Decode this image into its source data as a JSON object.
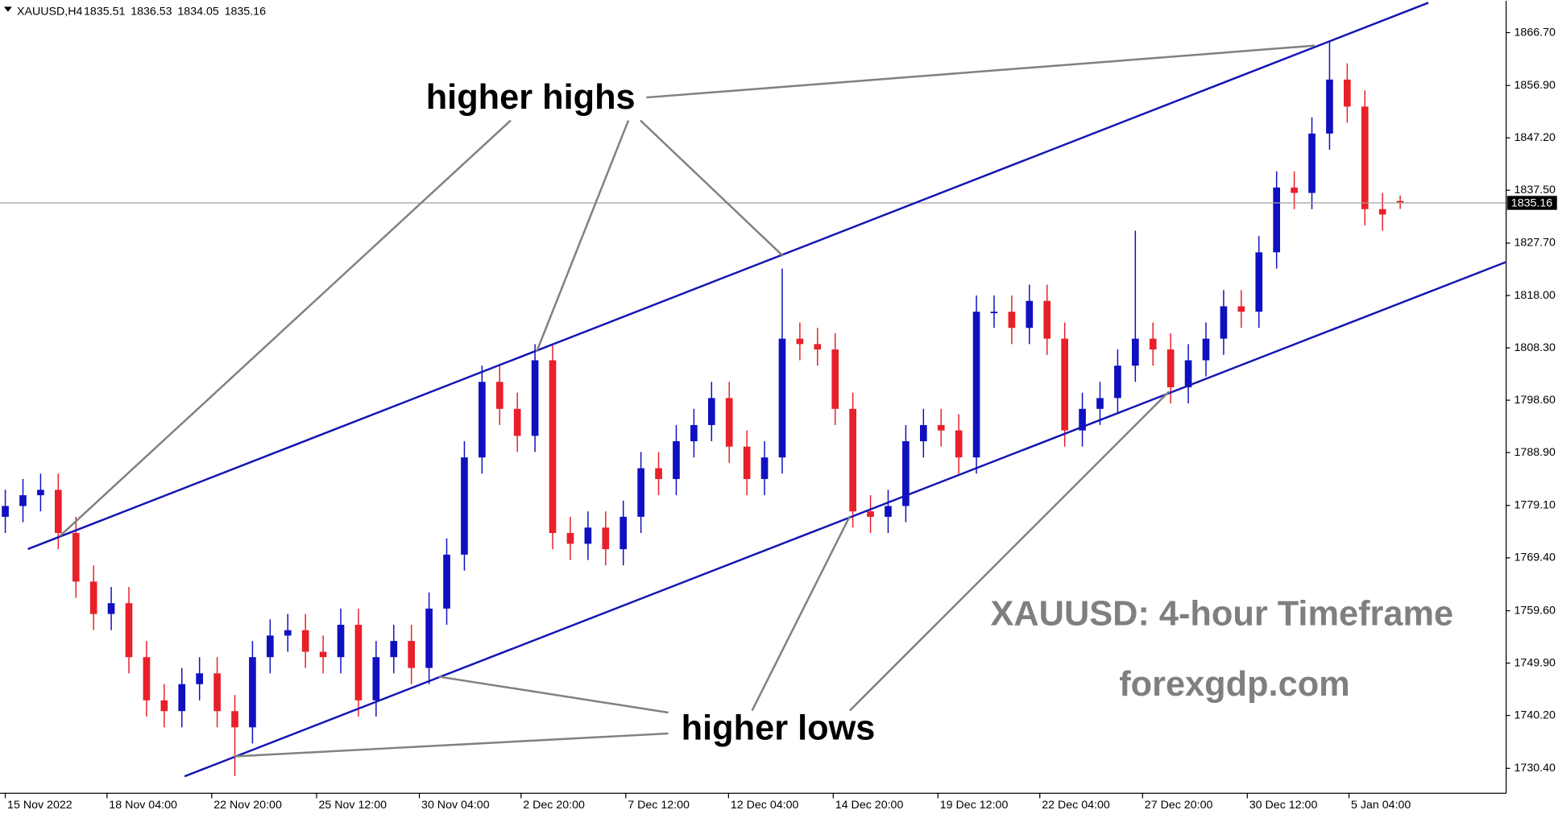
{
  "chart_data": {
    "type": "candlestick",
    "title": "XAUUSD,H4",
    "up_color": "#1010c0",
    "down_color": "#e8202a",
    "open": [
      1777,
      1779,
      1781,
      1782,
      1774,
      1765,
      1759,
      1761,
      1751,
      1743,
      1741,
      1746,
      1748,
      1741,
      1738,
      1751,
      1755,
      1756,
      1752,
      1751,
      1757,
      1743,
      1751,
      1754,
      1749,
      1760,
      1770,
      1788,
      1802,
      1797,
      1792,
      1806,
      1774,
      1772,
      1775,
      1771,
      1777,
      1786,
      1784,
      1791,
      1794,
      1799,
      1790,
      1784,
      1788,
      1810,
      1809,
      1808,
      1797,
      1778,
      1777,
      1779,
      1791,
      1794,
      1793,
      1788,
      1815,
      1815,
      1812,
      1817,
      1810,
      1793,
      1797,
      1799,
      1805,
      1810,
      1808,
      1801,
      1806,
      1810,
      1816,
      1815,
      1826,
      1838,
      1837,
      1848,
      1858,
      1853,
      1834,
      1835.51
    ],
    "high": [
      1782,
      1784,
      1785,
      1785,
      1777,
      1768,
      1764,
      1764,
      1754,
      1746,
      1749,
      1751,
      1751,
      1744,
      1754,
      1758,
      1759,
      1759,
      1755,
      1760,
      1760,
      1754,
      1757,
      1757,
      1763,
      1773,
      1791,
      1805,
      1805,
      1800,
      1809,
      1809,
      1777,
      1778,
      1778,
      1780,
      1789,
      1789,
      1794,
      1797,
      1802,
      1802,
      1793,
      1791,
      1823,
      1813,
      1812,
      1811,
      1800,
      1781,
      1782,
      1794,
      1797,
      1797,
      1796,
      1818,
      1818,
      1818,
      1820,
      1820,
      1813,
      1800,
      1802,
      1808,
      1830,
      1813,
      1811,
      1809,
      1813,
      1819,
      1819,
      1829,
      1841,
      1841,
      1851,
      1865,
      1861,
      1856,
      1837,
      1836.53
    ],
    "low": [
      1774,
      1776,
      1778,
      1771,
      1762,
      1756,
      1756,
      1748,
      1740,
      1738,
      1738,
      1743,
      1738,
      1729,
      1735,
      1748,
      1752,
      1749,
      1748,
      1748,
      1740,
      1740,
      1748,
      1746,
      1746,
      1757,
      1767,
      1785,
      1794,
      1789,
      1789,
      1771,
      1769,
      1769,
      1768,
      1768,
      1774,
      1781,
      1781,
      1788,
      1791,
      1787,
      1781,
      1781,
      1785,
      1806,
      1805,
      1794,
      1775,
      1774,
      1774,
      1776,
      1788,
      1790,
      1785,
      1785,
      1812,
      1809,
      1809,
      1807,
      1790,
      1790,
      1794,
      1796,
      1802,
      1805,
      1798,
      1798,
      1803,
      1807,
      1812,
      1812,
      1823,
      1834,
      1834,
      1845,
      1850,
      1831,
      1830,
      1834.05
    ],
    "close": [
      1779,
      1781,
      1782,
      1774,
      1765,
      1759,
      1761,
      1751,
      1743,
      1741,
      1746,
      1748,
      1741,
      1738,
      1751,
      1755,
      1756,
      1752,
      1751,
      1757,
      1743,
      1751,
      1754,
      1749,
      1760,
      1770,
      1788,
      1802,
      1797,
      1792,
      1806,
      1774,
      1772,
      1775,
      1771,
      1777,
      1786,
      1784,
      1791,
      1794,
      1799,
      1790,
      1784,
      1788,
      1810,
      1809,
      1808,
      1797,
      1778,
      1777,
      1779,
      1791,
      1794,
      1793,
      1788,
      1815,
      1815,
      1812,
      1817,
      1810,
      1793,
      1797,
      1799,
      1805,
      1810,
      1808,
      1801,
      1806,
      1810,
      1816,
      1815,
      1826,
      1838,
      1837,
      1848,
      1858,
      1853,
      1834,
      1833,
      1835.16
    ],
    "xlim": [
      -0.3,
      85
    ],
    "xticks": [
      {
        "value": 0,
        "label": "15 Nov 2022"
      },
      {
        "value": 5.76,
        "label": "18 Nov 04:00"
      },
      {
        "value": 11.69,
        "label": "22 Nov 20:00"
      },
      {
        "value": 17.63,
        "label": "25 Nov 12:00"
      },
      {
        "value": 23.45,
        "label": "30 Nov 04:00"
      },
      {
        "value": 29.21,
        "label": "2 Dec 20:00"
      },
      {
        "value": 35.14,
        "label": "7 Dec 12:00"
      },
      {
        "value": 40.96,
        "label": "12 Dec 04:00"
      },
      {
        "value": 46.89,
        "label": "14 Dec 20:00"
      },
      {
        "value": 52.82,
        "label": "19 Dec 12:00"
      },
      {
        "value": 58.59,
        "label": "22 Dec 04:00"
      },
      {
        "value": 64.41,
        "label": "27 Dec 20:00"
      },
      {
        "value": 70.34,
        "label": "30 Dec 12:00"
      },
      {
        "value": 76.1,
        "label": "5 Jan 04:00"
      }
    ],
    "ylim": [
      1725.78,
      1872.6
    ],
    "yticks": [
      {
        "value": 1866.7,
        "label": "1866.70"
      },
      {
        "value": 1856.9,
        "label": "1856.90"
      },
      {
        "value": 1847.2,
        "label": "1847.20"
      },
      {
        "value": 1837.5,
        "label": "1837.50"
      },
      {
        "value": 1827.7,
        "label": "1827.70"
      },
      {
        "value": 1818,
        "label": "1818.00"
      },
      {
        "value": 1808.3,
        "label": "1808.30"
      },
      {
        "value": 1798.6,
        "label": "1798.60"
      },
      {
        "value": 1788.9,
        "label": "1788.90"
      },
      {
        "value": 1779.1,
        "label": "1779.10"
      },
      {
        "value": 1769.4,
        "label": "1769.40"
      },
      {
        "value": 1759.6,
        "label": "1759.60"
      },
      {
        "value": 1749.9,
        "label": "1749.90"
      },
      {
        "value": 1740.2,
        "label": "1740.20"
      },
      {
        "value": 1730.4,
        "label": "1730.40"
      }
    ],
    "price_line": true,
    "annotations": [
      "higher highs",
      "higher lows",
      "XAUUSD: 4-hour Timeframe",
      "forexgdp.com"
    ]
  }
}
